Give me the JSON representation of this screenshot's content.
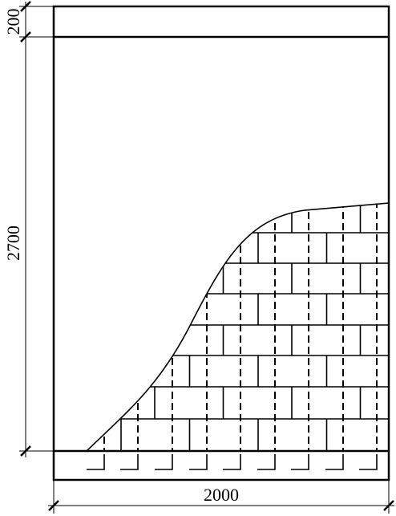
{
  "dimensions": {
    "top_band": "200",
    "height": "2700",
    "width": "2000"
  }
}
